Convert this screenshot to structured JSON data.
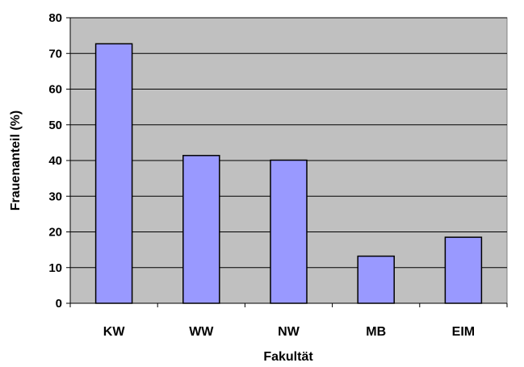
{
  "chart_data": {
    "type": "bar",
    "categories": [
      "KW",
      "WW",
      "NW",
      "MB",
      "EIM"
    ],
    "values": [
      72.7,
      41.4,
      40.1,
      13.2,
      18.5
    ],
    "xlabel": "Fakultät",
    "ylabel": "Frauenanteil (%)",
    "ylim": [
      0,
      80
    ],
    "yticks": [
      "0",
      "10",
      "20",
      "30",
      "40",
      "50",
      "60",
      "70",
      "80"
    ],
    "grid": true,
    "legend": "none",
    "colors": {
      "plot_background": "#c0c0c0",
      "bar_fill": "#9999ff",
      "bar_stroke": "#000000",
      "gridline": "#000000"
    }
  }
}
